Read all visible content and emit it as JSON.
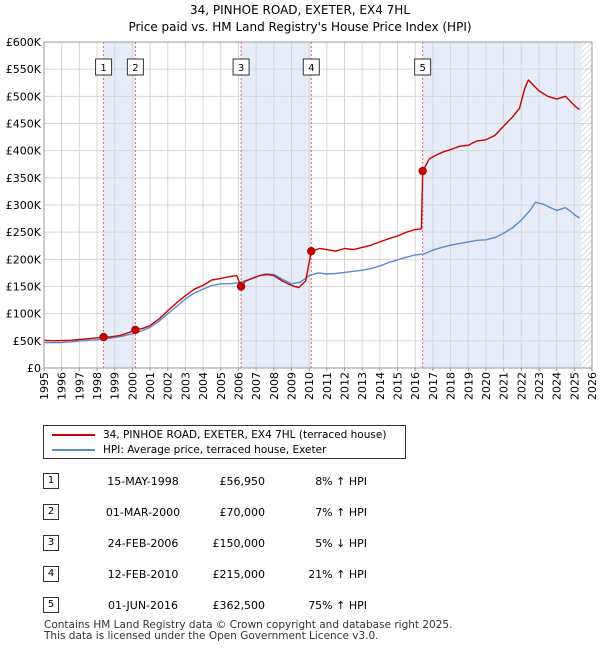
{
  "chart_data": {
    "type": "line",
    "title": "34, PINHOE ROAD, EXETER, EX4 7HL",
    "subtitle": "Price paid vs. HM Land Registry's House Price Index (HPI)",
    "xlim": [
      1995,
      2026
    ],
    "ylim": [
      0,
      600000
    ],
    "x_ticks": [
      1995,
      1996,
      1997,
      1998,
      1999,
      2000,
      2001,
      2002,
      2003,
      2004,
      2005,
      2006,
      2007,
      2008,
      2009,
      2010,
      2011,
      2012,
      2013,
      2014,
      2015,
      2016,
      2017,
      2018,
      2019,
      2020,
      2021,
      2022,
      2023,
      2024,
      2025,
      2026
    ],
    "y_ticks": [
      {
        "value": 0,
        "label": "£0"
      },
      {
        "value": 50000,
        "label": "£50K"
      },
      {
        "value": 100000,
        "label": "£100K"
      },
      {
        "value": 150000,
        "label": "£150K"
      },
      {
        "value": 200000,
        "label": "£200K"
      },
      {
        "value": 250000,
        "label": "£250K"
      },
      {
        "value": 300000,
        "label": "£300K"
      },
      {
        "value": 350000,
        "label": "£350K"
      },
      {
        "value": 400000,
        "label": "£400K"
      },
      {
        "value": 450000,
        "label": "£450K"
      },
      {
        "value": 500000,
        "label": "£500K"
      },
      {
        "value": 550000,
        "label": "£550K"
      },
      {
        "value": 600000,
        "label": "£600K"
      }
    ],
    "grid": true,
    "shaded_ranges": [
      [
        1998.37,
        2000.17
      ],
      [
        2006.15,
        2010.12
      ],
      [
        2016.42,
        2025.4
      ]
    ],
    "hatched_range": [
      2025.4,
      2026
    ],
    "series": [
      {
        "name": "34, PINHOE ROAD, EXETER, EX4 7HL (terraced house)",
        "color": "#cc0000",
        "points": [
          [
            1995.0,
            51000
          ],
          [
            1995.5,
            50000
          ],
          [
            1996.0,
            50500
          ],
          [
            1996.5,
            51000
          ],
          [
            1997.0,
            52500
          ],
          [
            1997.5,
            54000
          ],
          [
            1998.0,
            55500
          ],
          [
            1998.37,
            56950
          ],
          [
            1998.8,
            57500
          ],
          [
            1999.3,
            60000
          ],
          [
            1999.7,
            64000
          ],
          [
            2000.17,
            70000
          ],
          [
            2000.6,
            73000
          ],
          [
            2001.0,
            78000
          ],
          [
            2001.5,
            90000
          ],
          [
            2002.0,
            105000
          ],
          [
            2002.5,
            120000
          ],
          [
            2003.0,
            133000
          ],
          [
            2003.5,
            145000
          ],
          [
            2004.0,
            152000
          ],
          [
            2004.5,
            162000
          ],
          [
            2005.0,
            165000
          ],
          [
            2005.5,
            168000
          ],
          [
            2005.9,
            170000
          ],
          [
            2006.15,
            150000
          ],
          [
            2006.4,
            160000
          ],
          [
            2006.8,
            165000
          ],
          [
            2007.2,
            170000
          ],
          [
            2007.6,
            172000
          ],
          [
            2008.0,
            170000
          ],
          [
            2008.5,
            160000
          ],
          [
            2009.0,
            152000
          ],
          [
            2009.4,
            148000
          ],
          [
            2009.8,
            160000
          ],
          [
            2010.12,
            215000
          ],
          [
            2010.6,
            220000
          ],
          [
            2011.0,
            218000
          ],
          [
            2011.5,
            215000
          ],
          [
            2012.0,
            220000
          ],
          [
            2012.5,
            218000
          ],
          [
            2013.0,
            222000
          ],
          [
            2013.5,
            226000
          ],
          [
            2014.0,
            232000
          ],
          [
            2014.5,
            238000
          ],
          [
            2015.0,
            243000
          ],
          [
            2015.5,
            250000
          ],
          [
            2016.0,
            255000
          ],
          [
            2016.35,
            256000
          ],
          [
            2016.42,
            362500
          ],
          [
            2016.8,
            385000
          ],
          [
            2017.2,
            392000
          ],
          [
            2017.6,
            398000
          ],
          [
            2018.0,
            402000
          ],
          [
            2018.5,
            408000
          ],
          [
            2019.0,
            410000
          ],
          [
            2019.5,
            418000
          ],
          [
            2020.0,
            420000
          ],
          [
            2020.5,
            428000
          ],
          [
            2021.0,
            445000
          ],
          [
            2021.5,
            462000
          ],
          [
            2021.9,
            478000
          ],
          [
            2022.2,
            515000
          ],
          [
            2022.4,
            530000
          ],
          [
            2022.7,
            520000
          ],
          [
            2023.0,
            510000
          ],
          [
            2023.5,
            500000
          ],
          [
            2024.0,
            495000
          ],
          [
            2024.5,
            500000
          ],
          [
            2024.8,
            490000
          ],
          [
            2025.1,
            480000
          ],
          [
            2025.3,
            476000
          ]
        ]
      },
      {
        "name": "HPI: Average price, terraced house, Exeter",
        "color": "#5b8bd0",
        "points": [
          [
            1995.0,
            47000
          ],
          [
            1995.5,
            46500
          ],
          [
            1996.0,
            47000
          ],
          [
            1996.5,
            48000
          ],
          [
            1997.0,
            49500
          ],
          [
            1997.5,
            51000
          ],
          [
            1998.0,
            52000
          ],
          [
            1998.5,
            54000
          ],
          [
            1999.0,
            56000
          ],
          [
            1999.5,
            59000
          ],
          [
            2000.0,
            63000
          ],
          [
            2000.5,
            68000
          ],
          [
            2001.0,
            75000
          ],
          [
            2001.5,
            86000
          ],
          [
            2002.0,
            100000
          ],
          [
            2002.5,
            113000
          ],
          [
            2003.0,
            127000
          ],
          [
            2003.5,
            138000
          ],
          [
            2004.0,
            145000
          ],
          [
            2004.5,
            152000
          ],
          [
            2005.0,
            155000
          ],
          [
            2005.5,
            155000
          ],
          [
            2006.0,
            157000
          ],
          [
            2006.5,
            162000
          ],
          [
            2007.0,
            168000
          ],
          [
            2007.5,
            173000
          ],
          [
            2008.0,
            172000
          ],
          [
            2008.5,
            163000
          ],
          [
            2009.0,
            155000
          ],
          [
            2009.5,
            158000
          ],
          [
            2010.0,
            170000
          ],
          [
            2010.5,
            175000
          ],
          [
            2011.0,
            173000
          ],
          [
            2011.5,
            174000
          ],
          [
            2012.0,
            176000
          ],
          [
            2012.5,
            178000
          ],
          [
            2013.0,
            180000
          ],
          [
            2013.5,
            183000
          ],
          [
            2014.0,
            188000
          ],
          [
            2014.5,
            194000
          ],
          [
            2015.0,
            199000
          ],
          [
            2015.5,
            204000
          ],
          [
            2016.0,
            208000
          ],
          [
            2016.5,
            210000
          ],
          [
            2017.0,
            217000
          ],
          [
            2017.5,
            222000
          ],
          [
            2018.0,
            226000
          ],
          [
            2018.5,
            229000
          ],
          [
            2019.0,
            232000
          ],
          [
            2019.5,
            235000
          ],
          [
            2020.0,
            236000
          ],
          [
            2020.5,
            240000
          ],
          [
            2021.0,
            248000
          ],
          [
            2021.5,
            258000
          ],
          [
            2022.0,
            272000
          ],
          [
            2022.5,
            290000
          ],
          [
            2022.8,
            305000
          ],
          [
            2023.2,
            302000
          ],
          [
            2023.6,
            296000
          ],
          [
            2024.0,
            290000
          ],
          [
            2024.5,
            295000
          ],
          [
            2024.8,
            288000
          ],
          [
            2025.1,
            280000
          ],
          [
            2025.3,
            276000
          ]
        ]
      }
    ],
    "sale_markers": [
      {
        "label": "1",
        "x": 1998.37,
        "y": 56950
      },
      {
        "label": "2",
        "x": 2000.17,
        "y": 70000
      },
      {
        "label": "3",
        "x": 2006.15,
        "y": 150000
      },
      {
        "label": "4",
        "x": 2010.12,
        "y": 215000
      },
      {
        "label": "5",
        "x": 2016.42,
        "y": 362500
      }
    ]
  },
  "legend": {
    "property": "34, PINHOE ROAD, EXETER, EX4 7HL (terraced house)",
    "hpi": "HPI: Average price, terraced house, Exeter"
  },
  "sales": [
    {
      "num": "1",
      "date": "15-MAY-1998",
      "price": "£56,950",
      "hpi": "8% ↑ HPI"
    },
    {
      "num": "2",
      "date": "01-MAR-2000",
      "price": "£70,000",
      "hpi": "7% ↑ HPI"
    },
    {
      "num": "3",
      "date": "24-FEB-2006",
      "price": "£150,000",
      "hpi": "5% ↓ HPI"
    },
    {
      "num": "4",
      "date": "12-FEB-2010",
      "price": "£215,000",
      "hpi": "21% ↑ HPI"
    },
    {
      "num": "5",
      "date": "01-JUN-2016",
      "price": "£362,500",
      "hpi": "75% ↑ HPI"
    }
  ],
  "footer": {
    "line1": "Contains HM Land Registry data © Crown copyright and database right 2025.",
    "line2": "This data is licensed under the Open Government Licence v3.0."
  }
}
